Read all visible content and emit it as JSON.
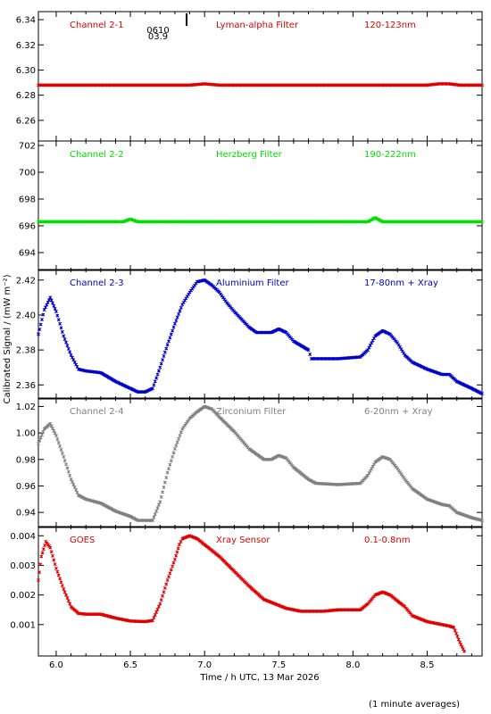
{
  "annotation": {
    "top_label_1": "0610",
    "top_label_2": "03.9"
  },
  "footer_note": "(1 minute averages)",
  "chart_data": [
    {
      "type": "scatter",
      "labels": [
        "Channel 2-1",
        "Lyman-alpha Filter",
        "120-123nm"
      ],
      "color": "#e00000",
      "ylim": [
        6.245,
        6.345
      ],
      "yticks": [
        6.26,
        6.28,
        6.3,
        6.32,
        6.34
      ],
      "decimals": 2,
      "xlim": [
        5.88,
        8.87
      ],
      "points": [
        [
          5.88,
          6.288
        ],
        [
          6.5,
          6.288
        ],
        [
          6.9,
          6.288
        ],
        [
          7.0,
          6.289
        ],
        [
          7.1,
          6.288
        ],
        [
          8.0,
          6.288
        ],
        [
          8.5,
          6.288
        ],
        [
          8.58,
          6.289
        ],
        [
          8.65,
          6.289
        ],
        [
          8.72,
          6.288
        ],
        [
          8.87,
          6.288
        ]
      ]
    },
    {
      "type": "scatter",
      "labels": [
        "Channel 2-2",
        "Herzberg Filter",
        "190-222nm"
      ],
      "color": "#00dd00",
      "ylim": [
        692.8,
        702.2
      ],
      "yticks": [
        694,
        696,
        698,
        700,
        702
      ],
      "decimals": 0,
      "xlim": [
        5.88,
        8.87
      ],
      "points": [
        [
          5.88,
          696.3
        ],
        [
          6.45,
          696.3
        ],
        [
          6.5,
          696.5
        ],
        [
          6.55,
          696.3
        ],
        [
          8.1,
          696.3
        ],
        [
          8.15,
          696.6
        ],
        [
          8.2,
          696.3
        ],
        [
          8.87,
          696.3
        ]
      ]
    },
    {
      "type": "scatter",
      "labels": [
        "Channel 2-3",
        "Aluminium Filter",
        "17-80nm + Xray"
      ],
      "color": "#0000cc",
      "ylim": [
        2.353,
        2.425
      ],
      "yticks": [
        2.36,
        2.38,
        2.4,
        2.42
      ],
      "decimals": 2,
      "xlim": [
        5.88,
        8.87
      ],
      "points": [
        [
          5.88,
          2.389
        ],
        [
          5.92,
          2.403
        ],
        [
          5.96,
          2.41
        ],
        [
          6.0,
          2.402
        ],
        [
          6.05,
          2.388
        ],
        [
          6.1,
          2.377
        ],
        [
          6.15,
          2.369
        ],
        [
          6.2,
          2.368
        ],
        [
          6.3,
          2.367
        ],
        [
          6.4,
          2.362
        ],
        [
          6.5,
          2.358
        ],
        [
          6.55,
          2.356
        ],
        [
          6.6,
          2.356
        ],
        [
          6.65,
          2.358
        ],
        [
          6.7,
          2.37
        ],
        [
          6.75,
          2.383
        ],
        [
          6.8,
          2.395
        ],
        [
          6.85,
          2.406
        ],
        [
          6.9,
          2.413
        ],
        [
          6.95,
          2.419
        ],
        [
          7.0,
          2.42
        ],
        [
          7.05,
          2.417
        ],
        [
          7.1,
          2.413
        ],
        [
          7.15,
          2.407
        ],
        [
          7.2,
          2.402
        ],
        [
          7.3,
          2.393
        ],
        [
          7.35,
          2.39
        ],
        [
          7.45,
          2.39
        ],
        [
          7.5,
          2.392
        ],
        [
          7.55,
          2.39
        ],
        [
          7.6,
          2.385
        ],
        [
          7.7,
          2.38
        ],
        [
          7.72,
          2.375
        ],
        [
          7.9,
          2.375
        ],
        [
          8.05,
          2.376
        ],
        [
          8.1,
          2.38
        ],
        [
          8.15,
          2.388
        ],
        [
          8.2,
          2.391
        ],
        [
          8.25,
          2.389
        ],
        [
          8.3,
          2.384
        ],
        [
          8.35,
          2.377
        ],
        [
          8.4,
          2.373
        ],
        [
          8.5,
          2.369
        ],
        [
          8.6,
          2.366
        ],
        [
          8.65,
          2.366
        ],
        [
          8.7,
          2.362
        ],
        [
          8.8,
          2.358
        ],
        [
          8.87,
          2.355
        ]
      ]
    },
    {
      "type": "scatter",
      "labels": [
        "Channel 2-4",
        "Zirconium Filter",
        "6-20nm + Xray"
      ],
      "color": "#808080",
      "ylim": [
        0.93,
        1.025
      ],
      "yticks": [
        0.94,
        0.96,
        0.98,
        1.0,
        1.02
      ],
      "decimals": 2,
      "xlim": [
        5.88,
        8.87
      ],
      "points": [
        [
          5.88,
          0.992
        ],
        [
          5.92,
          1.003
        ],
        [
          5.96,
          1.007
        ],
        [
          6.0,
          0.998
        ],
        [
          6.05,
          0.982
        ],
        [
          6.1,
          0.965
        ],
        [
          6.15,
          0.953
        ],
        [
          6.2,
          0.95
        ],
        [
          6.3,
          0.947
        ],
        [
          6.4,
          0.941
        ],
        [
          6.5,
          0.937
        ],
        [
          6.55,
          0.934
        ],
        [
          6.65,
          0.934
        ],
        [
          6.7,
          0.948
        ],
        [
          6.75,
          0.97
        ],
        [
          6.8,
          0.988
        ],
        [
          6.85,
          1.003
        ],
        [
          6.9,
          1.011
        ],
        [
          6.95,
          1.016
        ],
        [
          7.0,
          1.02
        ],
        [
          7.05,
          1.018
        ],
        [
          7.1,
          1.012
        ],
        [
          7.2,
          1.001
        ],
        [
          7.3,
          0.988
        ],
        [
          7.4,
          0.98
        ],
        [
          7.45,
          0.98
        ],
        [
          7.5,
          0.983
        ],
        [
          7.55,
          0.981
        ],
        [
          7.6,
          0.974
        ],
        [
          7.7,
          0.965
        ],
        [
          7.75,
          0.962
        ],
        [
          7.9,
          0.961
        ],
        [
          8.05,
          0.962
        ],
        [
          8.1,
          0.968
        ],
        [
          8.15,
          0.978
        ],
        [
          8.2,
          0.982
        ],
        [
          8.25,
          0.98
        ],
        [
          8.3,
          0.973
        ],
        [
          8.35,
          0.965
        ],
        [
          8.4,
          0.958
        ],
        [
          8.5,
          0.95
        ],
        [
          8.6,
          0.946
        ],
        [
          8.65,
          0.945
        ],
        [
          8.7,
          0.94
        ],
        [
          8.8,
          0.936
        ],
        [
          8.87,
          0.934
        ]
      ]
    },
    {
      "type": "scatter",
      "labels": [
        "GOES",
        "Xray Sensor",
        "0.1-0.8nm"
      ],
      "color": "#e00000",
      "ylim": [
        0.0,
        0.00425
      ],
      "yticks": [
        0.001,
        0.002,
        0.003,
        0.004
      ],
      "decimals": 3,
      "xlim": [
        5.88,
        8.87
      ],
      "xticks": [
        6.0,
        6.5,
        7.0,
        7.5,
        8.0,
        8.5
      ],
      "xlabel": "Time / h UTC, 13 Mar 2026",
      "points": [
        [
          5.88,
          0.0025
        ],
        [
          5.9,
          0.0033
        ],
        [
          5.93,
          0.0038
        ],
        [
          5.96,
          0.0036
        ],
        [
          6.0,
          0.0029
        ],
        [
          6.05,
          0.0022
        ],
        [
          6.1,
          0.0016
        ],
        [
          6.15,
          0.00138
        ],
        [
          6.2,
          0.00135
        ],
        [
          6.3,
          0.00135
        ],
        [
          6.4,
          0.00122
        ],
        [
          6.5,
          0.00112
        ],
        [
          6.6,
          0.0011
        ],
        [
          6.65,
          0.00114
        ],
        [
          6.7,
          0.0017
        ],
        [
          6.75,
          0.0025
        ],
        [
          6.8,
          0.0032
        ],
        [
          6.83,
          0.0037
        ],
        [
          6.85,
          0.0039
        ],
        [
          6.9,
          0.004
        ],
        [
          6.95,
          0.0039
        ],
        [
          7.0,
          0.0037
        ],
        [
          7.1,
          0.0033
        ],
        [
          7.2,
          0.0028
        ],
        [
          7.3,
          0.0023
        ],
        [
          7.4,
          0.00185
        ],
        [
          7.5,
          0.00165
        ],
        [
          7.55,
          0.00155
        ],
        [
          7.65,
          0.00145
        ],
        [
          7.8,
          0.00145
        ],
        [
          7.9,
          0.0015
        ],
        [
          8.05,
          0.0015
        ],
        [
          8.1,
          0.0017
        ],
        [
          8.15,
          0.002
        ],
        [
          8.2,
          0.0021
        ],
        [
          8.25,
          0.002
        ],
        [
          8.35,
          0.0016
        ],
        [
          8.4,
          0.0013
        ],
        [
          8.5,
          0.0011
        ],
        [
          8.6,
          0.001
        ],
        [
          8.65,
          0.00095
        ],
        [
          8.68,
          0.0009
        ],
        [
          8.72,
          0.0004
        ],
        [
          8.75,
          0.0001
        ]
      ]
    }
  ],
  "ylabel": "Calibrated Signal / (mW m⁻²)"
}
